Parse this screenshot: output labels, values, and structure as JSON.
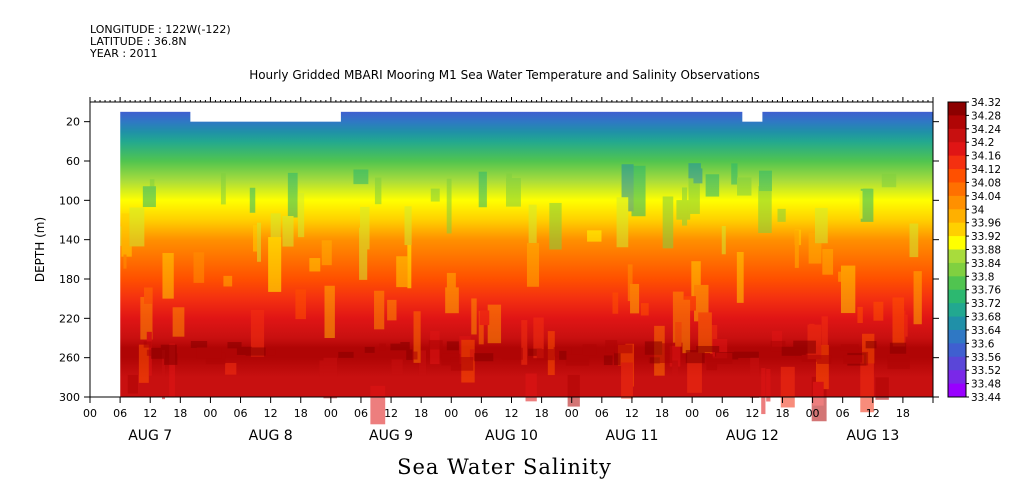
{
  "header": {
    "longitude": "LONGITUDE : 122W(-122)",
    "latitude": "LATITUDE : 36.8N",
    "year": "YEAR : 2011",
    "title": "Hourly Gridded MBARI Mooring M1 Sea Water Temperature and Salinity Observations"
  },
  "footer": {
    "variable_name": "Sea Water Salinity"
  },
  "colors": {
    "scale": [
      "#9900ff",
      "#7a28e8",
      "#5a46d8",
      "#3f5fd0",
      "#2f78c4",
      "#2090a8",
      "#22a890",
      "#2cb870",
      "#50c450",
      "#80d040",
      "#a8dc3c",
      "#d0ec30",
      "#ffff00",
      "#ffd000",
      "#ffb000",
      "#ff9000",
      "#ff7000",
      "#ff5000",
      "#f43010",
      "#e01515",
      "#c81010",
      "#b00505",
      "#8c0000"
    ]
  },
  "chart_data": {
    "type": "heatmap",
    "title": "Hourly Gridded MBARI Mooring M1 Sea Water Temperature and Salinity Observations",
    "ylabel": "DEPTH (m)",
    "xlabel": "",
    "y_reversed": true,
    "ylim": [
      300,
      0
    ],
    "xlim": [
      "AUG 7 00",
      "AUG 14 00"
    ],
    "yticks": [
      "20",
      "60",
      "100",
      "140",
      "180",
      "220",
      "260",
      "300"
    ],
    "xticks_hours": [
      "00",
      "06",
      "12",
      "18",
      "00",
      "06",
      "12",
      "18",
      "00",
      "06",
      "12",
      "18",
      "00",
      "06",
      "12",
      "18",
      "00",
      "06",
      "12",
      "18",
      "00",
      "06",
      "12",
      "18",
      "00",
      "06",
      "12",
      "18"
    ],
    "xticks_days": [
      "AUG 7",
      "AUG 8",
      "AUG 9",
      "AUG 10",
      "AUG 11",
      "AUG 12",
      "AUG 13"
    ],
    "colorbar_labels": [
      "34.32",
      "34.28",
      "34.24",
      "34.2",
      "34.16",
      "34.12",
      "34.08",
      "34.04",
      "34",
      "33.96",
      "33.92",
      "33.88",
      "33.84",
      "33.8",
      "33.76",
      "33.72",
      "33.68",
      "33.64",
      "33.6",
      "33.56",
      "33.52",
      "33.48",
      "33.44"
    ],
    "colorbar_min": 33.44,
    "colorbar_max": 34.32,
    "colorbar_step": 0.04,
    "depth_profile": {
      "depth": [
        10,
        20,
        30,
        40,
        60,
        80,
        100,
        120,
        130,
        140,
        160,
        180,
        200,
        220,
        240,
        250,
        260,
        280,
        300
      ],
      "salinity": [
        33.59,
        33.61,
        33.64,
        33.69,
        33.78,
        33.86,
        33.91,
        33.96,
        34.0,
        34.05,
        34.09,
        34.12,
        34.15,
        34.19,
        34.24,
        34.27,
        34.26,
        34.24,
        34.23
      ]
    },
    "missing_data": [
      {
        "start": "AUG 7 00",
        "end": "AUG 7 06",
        "depth_from": 0,
        "depth_to": 300
      },
      {
        "start": "AUG 7 20",
        "end": "AUG 9 02",
        "depth_from": 0,
        "depth_to": 20
      },
      {
        "start": "AUG 12 10",
        "end": "AUG 12 14",
        "depth_from": 0,
        "depth_to": 20
      }
    ]
  }
}
